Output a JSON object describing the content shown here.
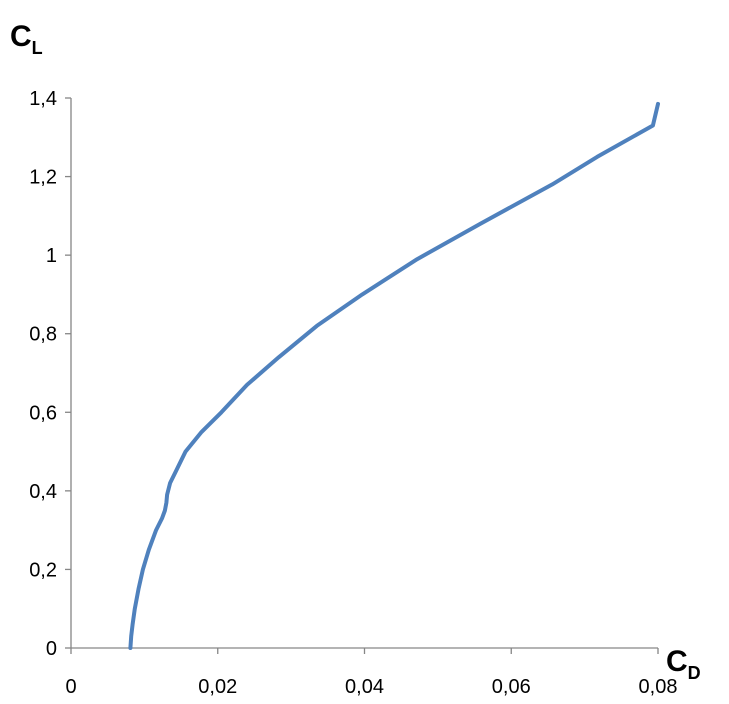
{
  "chart_data": {
    "type": "line",
    "title": "",
    "xlabel": {
      "main": "C",
      "sub": "D"
    },
    "ylabel": {
      "main": "C",
      "sub": "L"
    },
    "xlim": [
      0,
      0.08
    ],
    "ylim": [
      0,
      1.4
    ],
    "x_ticks": [
      0,
      0.02,
      0.04,
      0.06,
      0.08
    ],
    "x_tick_labels": [
      "0",
      "0,02",
      "0,04",
      "0,06",
      "0,08"
    ],
    "y_ticks": [
      0,
      0.2,
      0.4,
      0.6,
      0.8,
      1.0,
      1.2,
      1.4
    ],
    "y_tick_labels": [
      "0",
      "0,2",
      "0,4",
      "0,6",
      "0,8",
      "1",
      "1,2",
      "1,4"
    ],
    "grid": false,
    "series": [
      {
        "color": "#4f81bd",
        "x": [
          0.0081,
          0.0082,
          0.0084,
          0.0087,
          0.0092,
          0.0098,
          0.0106,
          0.0116,
          0.0124,
          0.0128,
          0.013,
          0.0131,
          0.0135,
          0.0143,
          0.0156,
          0.0178,
          0.0205,
          0.024,
          0.0283,
          0.0335,
          0.0397,
          0.0472,
          0.0558,
          0.0656,
          0.0717,
          0.0793
        ],
        "y": [
          0.0,
          0.03,
          0.06,
          0.1,
          0.15,
          0.2,
          0.25,
          0.3,
          0.33,
          0.35,
          0.37,
          0.39,
          0.42,
          0.45,
          0.5,
          0.55,
          0.6,
          0.67,
          0.74,
          0.82,
          0.9,
          0.99,
          1.08,
          1.18,
          1.25,
          1.33
        ]
      }
    ],
    "extra_point": {
      "x": 0.08,
      "y": 1.385
    }
  }
}
